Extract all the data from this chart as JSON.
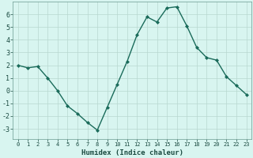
{
  "x": [
    0,
    1,
    2,
    3,
    4,
    5,
    6,
    7,
    8,
    9,
    10,
    11,
    12,
    13,
    14,
    15,
    16,
    17,
    18,
    19,
    20,
    21,
    22,
    23
  ],
  "y": [
    2.0,
    1.8,
    1.9,
    1.0,
    0.0,
    -1.2,
    -1.8,
    -2.5,
    -3.1,
    -1.3,
    0.5,
    2.3,
    4.4,
    5.8,
    5.4,
    6.5,
    6.6,
    5.1,
    3.4,
    2.6,
    2.4,
    1.1,
    0.4,
    -0.3
  ],
  "line_color": "#1a6b5a",
  "marker": "D",
  "marker_size": 2.0,
  "linewidth": 1.0,
  "bg_color": "#d8f5f0",
  "grid_color": "#b8d8d0",
  "xlabel": "Humidex (Indice chaleur)",
  "xlabel_fontsize": 6.5,
  "ytick_values": [
    -3,
    -2,
    -1,
    0,
    1,
    2,
    3,
    4,
    5,
    6
  ],
  "ytick_labels": [
    "-3",
    "-2",
    "-1",
    "0",
    "1",
    "2",
    "3",
    "4",
    "5",
    "6"
  ],
  "ylim": [
    -3.8,
    7.0
  ],
  "xlim": [
    -0.5,
    23.5
  ],
  "xtick_fontsize": 5.0,
  "ytick_fontsize": 6.0
}
